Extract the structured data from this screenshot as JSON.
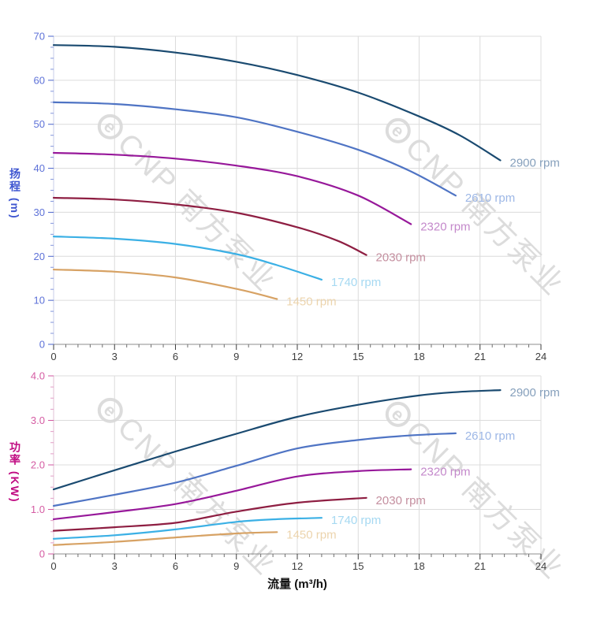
{
  "axis_titles": {
    "head": "扬程 (m)",
    "power": "功率 (KW)",
    "flow": "流量 (m³/h)"
  },
  "watermark": {
    "logo_letter": "e",
    "text": "CNP 南方泵业",
    "color": "#d9d9d9"
  },
  "chart_data": [
    {
      "type": "line",
      "title": "",
      "xlabel": "",
      "ylabel": "扬程 (m)",
      "ylabel_color": "#3f56d0",
      "xlim": [
        0,
        24
      ],
      "ylim": [
        0,
        70
      ],
      "grid": true,
      "grid_color": "#dcdcdc",
      "legend_position": "curve-end-labels",
      "xticks": [
        0,
        3,
        6,
        9,
        12,
        15,
        18,
        21,
        24
      ],
      "xtick_labels": [
        "0",
        "3",
        "6",
        "9",
        "12",
        "15",
        "18",
        "21",
        "24"
      ],
      "x_minor_step": 0.6,
      "yticks": [
        0,
        10,
        20,
        30,
        40,
        50,
        60,
        70
      ],
      "ytick_labels": [
        "0",
        "10",
        "20",
        "30",
        "40",
        "50",
        "60",
        "70"
      ],
      "y_minor_step": 2.5,
      "x_axis_color": "#8c8c8c",
      "x_tick_color": "#3d3d3d",
      "x_minor_tick_color": "#6e6e6e",
      "x_tick_label_color": "#3d3d3d",
      "y_axis_color": "#c7cee8",
      "y_tick_color": "#4a63cc",
      "y_minor_tick_color": "#8496dc",
      "y_tick_label_color": "#5e72d8",
      "series": [
        {
          "name": "2900 rpm",
          "color": "#1a4a70",
          "label_color": "#86a0bc",
          "points": [
            [
              0,
              68
            ],
            [
              3,
              67.6
            ],
            [
              6,
              66.3
            ],
            [
              9,
              64.2
            ],
            [
              12,
              61.2
            ],
            [
              15,
              57.2
            ],
            [
              18,
              51.8
            ],
            [
              20,
              47.5
            ],
            [
              22,
              41.8
            ]
          ]
        },
        {
          "name": "2610 rpm",
          "color": "#4f74c4",
          "label_color": "#9db7e6",
          "points": [
            [
              0,
              55
            ],
            [
              3,
              54.6
            ],
            [
              6,
              53.4
            ],
            [
              9,
              51.6
            ],
            [
              12,
              48.3
            ],
            [
              15,
              44.2
            ],
            [
              17.5,
              39.5
            ],
            [
              19.8,
              33.8
            ]
          ]
        },
        {
          "name": "2320 rpm",
          "color": "#97189a",
          "label_color": "#c489cb",
          "points": [
            [
              0,
              43.5
            ],
            [
              3,
              43.1
            ],
            [
              6,
              42.2
            ],
            [
              9,
              40.6
            ],
            [
              12,
              38.2
            ],
            [
              15,
              33.8
            ],
            [
              17.6,
              27.3
            ]
          ]
        },
        {
          "name": "2030 rpm",
          "color": "#8e1e42",
          "label_color": "#c48f9f",
          "points": [
            [
              0,
              33.3
            ],
            [
              3,
              32.9
            ],
            [
              6,
              31.8
            ],
            [
              9,
              29.9
            ],
            [
              12,
              26.6
            ],
            [
              14,
              23.5
            ],
            [
              15.4,
              20.3
            ]
          ]
        },
        {
          "name": "1740 rpm",
          "color": "#3bb0e5",
          "label_color": "#a6d9f2",
          "points": [
            [
              0,
              24.5
            ],
            [
              3,
              24
            ],
            [
              6,
              22.8
            ],
            [
              9,
              20.5
            ],
            [
              11,
              18
            ],
            [
              13.2,
              14.7
            ]
          ]
        },
        {
          "name": "1450 rpm",
          "color": "#d7a264",
          "label_color": "#ecd4ad",
          "points": [
            [
              0,
              17
            ],
            [
              3,
              16.5
            ],
            [
              6,
              15.2
            ],
            [
              9,
              12.6
            ],
            [
              11,
              10.3
            ]
          ]
        }
      ]
    },
    {
      "type": "line",
      "title": "",
      "xlabel": "流量 (m³/h)",
      "ylabel": "功率 (KW)",
      "ylabel_color": "#c00b82",
      "xlim": [
        0,
        24
      ],
      "ylim": [
        0,
        4
      ],
      "grid": true,
      "grid_color": "#dcdcdc",
      "legend_position": "curve-end-labels",
      "xticks": [
        0,
        3,
        6,
        9,
        12,
        15,
        18,
        21,
        24
      ],
      "xtick_labels": [
        "0",
        "3",
        "6",
        "9",
        "12",
        "15",
        "18",
        "21",
        "24"
      ],
      "x_minor_step": 0.6,
      "yticks": [
        0,
        1,
        2,
        3,
        4
      ],
      "ytick_labels": [
        "0",
        "1.0",
        "2.0",
        "3.0",
        "4.0"
      ],
      "y_minor_step": 0.25,
      "x_axis_color": "#8c8c8c",
      "x_tick_color": "#3d3d3d",
      "x_minor_tick_color": "#6e6e6e",
      "x_tick_label_color": "#3d3d3d",
      "y_axis_color": "#e0c2d6",
      "y_tick_color": "#d156a0",
      "y_minor_tick_color": "#e39cc6",
      "y_tick_label_color": "#d55ca3",
      "series": [
        {
          "name": "2900 rpm",
          "color": "#1a4a70",
          "label_color": "#86a0bc",
          "points": [
            [
              0,
              1.45
            ],
            [
              3,
              1.88
            ],
            [
              6,
              2.3
            ],
            [
              9,
              2.7
            ],
            [
              12,
              3.08
            ],
            [
              15,
              3.35
            ],
            [
              18,
              3.56
            ],
            [
              20,
              3.64
            ],
            [
              22,
              3.68
            ]
          ]
        },
        {
          "name": "2610 rpm",
          "color": "#4f74c4",
          "label_color": "#9db7e6",
          "points": [
            [
              0,
              1.08
            ],
            [
              3,
              1.33
            ],
            [
              6,
              1.6
            ],
            [
              9,
              1.98
            ],
            [
              12,
              2.37
            ],
            [
              15,
              2.56
            ],
            [
              17.5,
              2.66
            ],
            [
              19.8,
              2.71
            ]
          ]
        },
        {
          "name": "2320 rpm",
          "color": "#97189a",
          "label_color": "#c489cb",
          "points": [
            [
              0,
              0.78
            ],
            [
              3,
              0.94
            ],
            [
              6,
              1.12
            ],
            [
              9,
              1.42
            ],
            [
              12,
              1.74
            ],
            [
              15,
              1.86
            ],
            [
              17.6,
              1.9
            ]
          ]
        },
        {
          "name": "2030 rpm",
          "color": "#8e1e42",
          "label_color": "#c48f9f",
          "points": [
            [
              0,
              0.52
            ],
            [
              3,
              0.6
            ],
            [
              6,
              0.7
            ],
            [
              9,
              0.95
            ],
            [
              12,
              1.15
            ],
            [
              15.4,
              1.26
            ]
          ]
        },
        {
          "name": "1740 rpm",
          "color": "#3bb0e5",
          "label_color": "#a6d9f2",
          "points": [
            [
              0,
              0.34
            ],
            [
              3,
              0.42
            ],
            [
              6,
              0.55
            ],
            [
              9,
              0.72
            ],
            [
              11,
              0.78
            ],
            [
              13.2,
              0.81
            ]
          ]
        },
        {
          "name": "1450 rpm",
          "color": "#d7a264",
          "label_color": "#ecd4ad",
          "points": [
            [
              0,
              0.2
            ],
            [
              3,
              0.27
            ],
            [
              6,
              0.37
            ],
            [
              9,
              0.46
            ],
            [
              11,
              0.49
            ]
          ]
        }
      ]
    }
  ]
}
